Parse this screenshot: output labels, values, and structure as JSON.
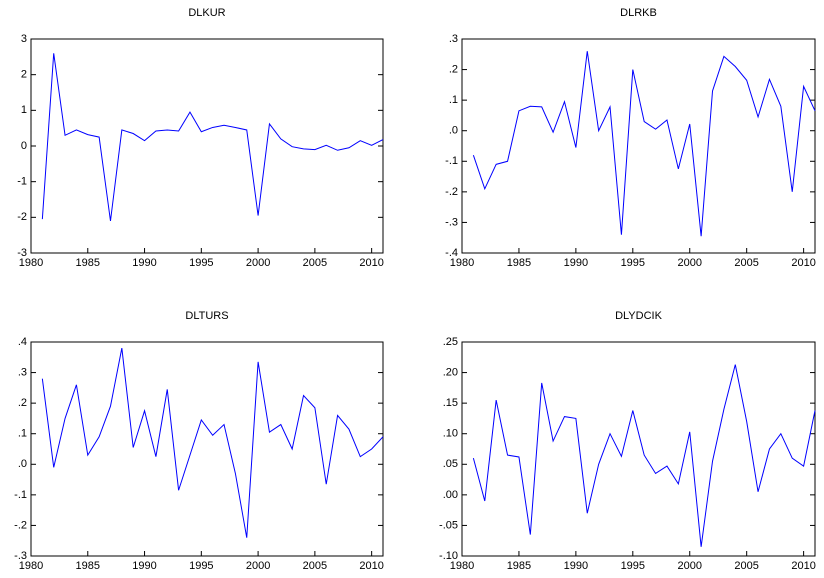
{
  "chart_data": [
    {
      "type": "line",
      "title": "DLKUR",
      "color": "#0000ff",
      "x": [
        1981,
        1982,
        1983,
        1984,
        1985,
        1986,
        1987,
        1988,
        1989,
        1990,
        1991,
        1992,
        1993,
        1994,
        1995,
        1996,
        1997,
        1998,
        1999,
        2000,
        2001,
        2002,
        2003,
        2004,
        2005,
        2006,
        2007,
        2008,
        2009,
        2010,
        2011
      ],
      "values": [
        -2.05,
        2.6,
        0.3,
        0.45,
        0.32,
        0.25,
        -2.1,
        0.45,
        0.35,
        0.15,
        0.42,
        0.45,
        0.42,
        0.95,
        0.4,
        0.52,
        0.58,
        0.52,
        0.45,
        -1.95,
        0.62,
        0.2,
        -0.02,
        -0.08,
        -0.1,
        0.02,
        -0.12,
        -0.05,
        0.15,
        0.02,
        0.18
      ],
      "xlim": [
        1980,
        2011
      ],
      "xticks": [
        1980,
        1985,
        1990,
        1995,
        2000,
        2005,
        2010
      ],
      "ylim": [
        -3,
        3
      ],
      "yticks": [
        -3,
        -2,
        -1,
        0,
        1,
        2,
        3
      ]
    },
    {
      "type": "line",
      "title": "DLRKB",
      "color": "#0000ff",
      "x": [
        1981,
        1982,
        1983,
        1984,
        1985,
        1986,
        1987,
        1988,
        1989,
        1990,
        1991,
        1992,
        1993,
        1994,
        1995,
        1996,
        1997,
        1998,
        1999,
        2000,
        2001,
        2002,
        2003,
        2004,
        2005,
        2006,
        2007,
        2008,
        2009,
        2010,
        2011
      ],
      "values": [
        -0.08,
        -0.19,
        -0.11,
        -0.1,
        0.065,
        0.08,
        0.078,
        -0.005,
        0.095,
        -0.055,
        0.26,
        0.0,
        0.078,
        -0.34,
        0.2,
        0.03,
        0.005,
        0.035,
        -0.125,
        0.022,
        -0.345,
        0.13,
        0.243,
        0.21,
        0.165,
        0.045,
        0.168,
        0.08,
        -0.2,
        0.145,
        0.065
      ],
      "xlim": [
        1980,
        2011
      ],
      "xticks": [
        1980,
        1985,
        1990,
        1995,
        2000,
        2005,
        2010
      ],
      "ylim": [
        -0.4,
        0.3
      ],
      "yticks": [
        {
          "value": -0.4,
          "label": "-.4"
        },
        {
          "value": -0.3,
          "label": "-.3"
        },
        {
          "value": -0.2,
          "label": "-.2"
        },
        {
          "value": -0.1,
          "label": "-.1"
        },
        {
          "value": 0,
          "label": ".0"
        },
        {
          "value": 0.1,
          "label": ".1"
        },
        {
          "value": 0.2,
          "label": ".2"
        },
        {
          "value": 0.3,
          "label": ".3"
        }
      ]
    },
    {
      "type": "line",
      "title": "DLTURS",
      "color": "#0000ff",
      "x": [
        1981,
        1982,
        1983,
        1984,
        1985,
        1986,
        1987,
        1988,
        1989,
        1990,
        1991,
        1992,
        1993,
        1994,
        1995,
        1996,
        1997,
        1998,
        1999,
        2000,
        2001,
        2002,
        2003,
        2004,
        2005,
        2006,
        2007,
        2008,
        2009,
        2010,
        2011
      ],
      "values": [
        0.28,
        -0.01,
        0.15,
        0.26,
        0.03,
        0.09,
        0.19,
        0.38,
        0.055,
        0.175,
        0.025,
        0.245,
        -0.085,
        0.03,
        0.145,
        0.095,
        0.13,
        -0.03,
        -0.24,
        0.335,
        0.105,
        0.13,
        0.05,
        0.225,
        0.185,
        -0.065,
        0.16,
        0.115,
        0.025,
        0.05,
        0.09
      ],
      "xlim": [
        1980,
        2011
      ],
      "xticks": [
        1980,
        1985,
        1990,
        1995,
        2000,
        2005,
        2010
      ],
      "ylim": [
        -0.3,
        0.4
      ],
      "yticks": [
        {
          "value": -0.3,
          "label": "-.3"
        },
        {
          "value": -0.2,
          "label": "-.2"
        },
        {
          "value": -0.1,
          "label": "-.1"
        },
        {
          "value": 0,
          "label": ".0"
        },
        {
          "value": 0.1,
          "label": ".1"
        },
        {
          "value": 0.2,
          "label": ".2"
        },
        {
          "value": 0.3,
          "label": ".3"
        },
        {
          "value": 0.4,
          "label": ".4"
        }
      ]
    },
    {
      "type": "line",
      "title": "DLYDCIK",
      "color": "#0000ff",
      "x": [
        1981,
        1982,
        1983,
        1984,
        1985,
        1986,
        1987,
        1988,
        1989,
        1990,
        1991,
        1992,
        1993,
        1994,
        1995,
        1996,
        1997,
        1998,
        1999,
        2000,
        2001,
        2002,
        2003,
        2004,
        2005,
        2006,
        2007,
        2008,
        2009,
        2010,
        2011
      ],
      "values": [
        0.06,
        -0.01,
        0.155,
        0.065,
        0.062,
        -0.065,
        0.183,
        0.088,
        0.128,
        0.125,
        -0.03,
        0.05,
        0.1,
        0.063,
        0.138,
        0.065,
        0.035,
        0.047,
        0.018,
        0.103,
        -0.085,
        0.055,
        0.14,
        0.213,
        0.12,
        0.005,
        0.075,
        0.1,
        0.06,
        0.047,
        0.138
      ],
      "xlim": [
        1980,
        2011
      ],
      "xticks": [
        1980,
        1985,
        1990,
        1995,
        2000,
        2005,
        2010
      ],
      "ylim": [
        -0.1,
        0.25
      ],
      "yticks": [
        {
          "value": -0.1,
          "label": "-.10"
        },
        {
          "value": -0.05,
          "label": "-.05"
        },
        {
          "value": 0,
          "label": ".00"
        },
        {
          "value": 0.05,
          "label": ".05"
        },
        {
          "value": 0.1,
          "label": ".10"
        },
        {
          "value": 0.15,
          "label": ".15"
        },
        {
          "value": 0.2,
          "label": ".20"
        },
        {
          "value": 0.25,
          "label": ".25"
        }
      ]
    }
  ]
}
